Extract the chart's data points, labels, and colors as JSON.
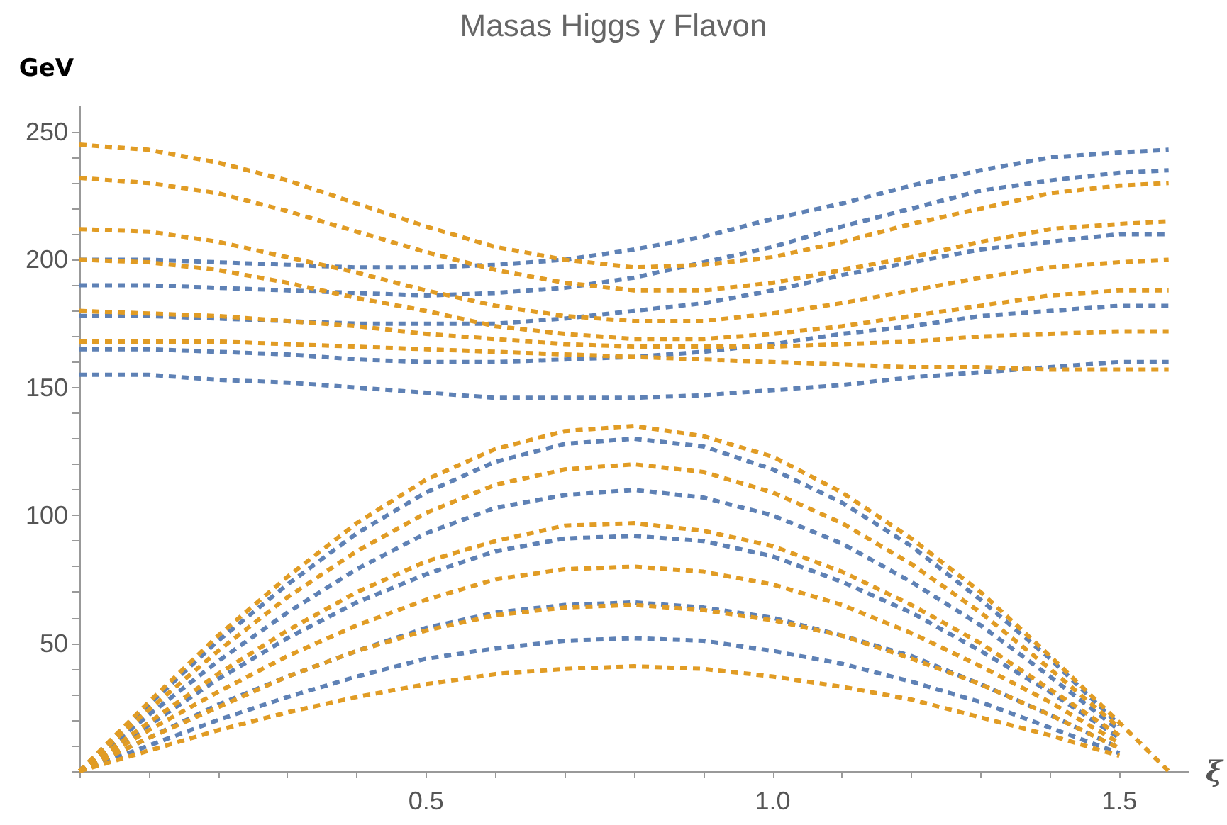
{
  "chart_data": {
    "type": "line",
    "title": "Masas Higgs y Flavon",
    "xlabel": "ξ",
    "ylabel": "GeV",
    "line_style": "dashed",
    "marker": "none",
    "grid": false,
    "x": [
      0,
      0.1,
      0.2,
      0.3,
      0.4,
      0.5,
      0.6,
      0.7,
      0.8,
      0.9,
      1.0,
      1.1,
      1.2,
      1.3,
      1.4,
      1.5,
      1.571
    ],
    "xlim": [
      0,
      1.6
    ],
    "ylim": [
      0,
      260
    ],
    "xticks": [
      {
        "value": 0,
        "label": null
      },
      {
        "value": 0.1,
        "label": null
      },
      {
        "value": 0.2,
        "label": null
      },
      {
        "value": 0.3,
        "label": null
      },
      {
        "value": 0.4,
        "label": null
      },
      0.5,
      {
        "value": 0.6,
        "label": null
      },
      {
        "value": 0.7,
        "label": null
      },
      {
        "value": 0.8,
        "label": null
      },
      {
        "value": 0.9,
        "label": null
      },
      {
        "value": 1.0,
        "label": "1.0"
      },
      {
        "value": 1.1,
        "label": null
      },
      {
        "value": 1.2,
        "label": null
      },
      {
        "value": 1.3,
        "label": null
      },
      {
        "value": 1.4,
        "label": null
      },
      1.5
    ],
    "yticks": [
      {
        "value": 0,
        "label": null
      },
      {
        "value": 10,
        "label": null
      },
      {
        "value": 20,
        "label": null
      },
      {
        "value": 30,
        "label": null
      },
      {
        "value": 40,
        "label": null
      },
      50,
      {
        "value": 60,
        "label": null
      },
      {
        "value": 70,
        "label": null
      },
      {
        "value": 80,
        "label": null
      },
      {
        "value": 90,
        "label": null
      },
      100,
      {
        "value": 110,
        "label": null
      },
      {
        "value": 120,
        "label": null
      },
      {
        "value": 130,
        "label": null
      },
      {
        "value": 140,
        "label": null
      },
      150,
      {
        "value": 160,
        "label": null
      },
      {
        "value": 170,
        "label": null
      },
      {
        "value": 180,
        "label": null
      },
      {
        "value": 190,
        "label": null
      },
      200,
      {
        "value": 210,
        "label": null
      },
      {
        "value": 220,
        "label": null
      },
      {
        "value": 230,
        "label": null
      },
      {
        "value": 240,
        "label": null
      },
      250
    ],
    "series": [
      {
        "color": "#5e81b5",
        "values": [
          0,
          26,
          51,
          73,
          93,
          109,
          121,
          128,
          130,
          127,
          118,
          105,
          88,
          67,
          44,
          18,
          null
        ]
      },
      {
        "color": "#5e81b5",
        "values": [
          0,
          22,
          43,
          62,
          79,
          93,
          103,
          108,
          110,
          107,
          100,
          89,
          74,
          57,
          37,
          16,
          null
        ]
      },
      {
        "color": "#5e81b5",
        "values": [
          0,
          18,
          36,
          52,
          66,
          77,
          86,
          91,
          92,
          90,
          84,
          74,
          62,
          47,
          31,
          13,
          null
        ]
      },
      {
        "color": "#5e81b5",
        "values": [
          0,
          13,
          26,
          37,
          47,
          56,
          62,
          65,
          66,
          64,
          60,
          53,
          45,
          34,
          22,
          9,
          null
        ]
      },
      {
        "color": "#5e81b5",
        "values": [
          0,
          10,
          20,
          29,
          37,
          44,
          48,
          51,
          52,
          51,
          47,
          42,
          35,
          27,
          17,
          7,
          null
        ]
      },
      {
        "color": "#5e81b5",
        "values": [
          200,
          200,
          199,
          198,
          197,
          197,
          198,
          200,
          204,
          209,
          216,
          222,
          229,
          235,
          240,
          242,
          243
        ]
      },
      {
        "color": "#5e81b5",
        "values": [
          190,
          190,
          189,
          188,
          187,
          186,
          187,
          189,
          193,
          199,
          205,
          213,
          220,
          227,
          231,
          234,
          235
        ]
      },
      {
        "color": "#5e81b5",
        "values": [
          178,
          178,
          177,
          176,
          175,
          175,
          175,
          177,
          180,
          183,
          188,
          194,
          199,
          204,
          207,
          210,
          210
        ]
      },
      {
        "color": "#5e81b5",
        "values": [
          165,
          165,
          164,
          163,
          161,
          160,
          160,
          161,
          162,
          164,
          167,
          171,
          174,
          178,
          180,
          182,
          182
        ]
      },
      {
        "color": "#5e81b5",
        "values": [
          155,
          155,
          153,
          152,
          150,
          148,
          146,
          146,
          146,
          147,
          149,
          151,
          154,
          156,
          158,
          160,
          160
        ]
      },
      {
        "color": "#e19c24",
        "values": [
          0,
          27,
          53,
          76,
          97,
          114,
          126,
          133,
          135,
          131,
          123,
          109,
          91,
          70,
          45,
          19,
          0
        ]
      },
      {
        "color": "#e19c24",
        "values": [
          0,
          24,
          47,
          68,
          86,
          101,
          112,
          118,
          120,
          117,
          109,
          97,
          81,
          62,
          40,
          17,
          null
        ]
      },
      {
        "color": "#e19c24",
        "values": [
          0,
          19,
          38,
          55,
          70,
          82,
          90,
          96,
          97,
          94,
          88,
          78,
          65,
          50,
          32,
          14,
          null
        ]
      },
      {
        "color": "#e19c24",
        "values": [
          0,
          16,
          31,
          45,
          57,
          67,
          75,
          79,
          80,
          78,
          73,
          65,
          54,
          41,
          27,
          11,
          null
        ]
      },
      {
        "color": "#e19c24",
        "values": [
          0,
          13,
          25,
          37,
          47,
          55,
          61,
          64,
          65,
          63,
          59,
          53,
          44,
          34,
          22,
          9,
          null
        ]
      },
      {
        "color": "#e19c24",
        "values": [
          0,
          8,
          16,
          23,
          29,
          34,
          38,
          40,
          41,
          40,
          37,
          33,
          28,
          21,
          14,
          6,
          null
        ]
      },
      {
        "color": "#e19c24",
        "values": [
          245,
          243,
          238,
          231,
          222,
          213,
          205,
          200,
          197,
          198,
          201,
          207,
          214,
          220,
          226,
          229,
          230
        ]
      },
      {
        "color": "#e19c24",
        "values": [
          232,
          230,
          226,
          219,
          211,
          203,
          196,
          191,
          188,
          188,
          191,
          196,
          201,
          207,
          212,
          214,
          215
        ]
      },
      {
        "color": "#e19c24",
        "values": [
          212,
          211,
          207,
          201,
          195,
          188,
          182,
          178,
          176,
          176,
          179,
          183,
          188,
          193,
          197,
          199,
          200
        ]
      },
      {
        "color": "#e19c24",
        "values": [
          200,
          199,
          196,
          191,
          185,
          180,
          174,
          171,
          169,
          169,
          171,
          174,
          178,
          182,
          186,
          188,
          188
        ]
      },
      {
        "color": "#e19c24",
        "values": [
          180,
          179,
          178,
          176,
          174,
          171,
          169,
          167,
          166,
          166,
          166,
          167,
          168,
          170,
          171,
          172,
          172
        ]
      },
      {
        "color": "#e19c24",
        "values": [
          168,
          168,
          168,
          167,
          166,
          165,
          164,
          163,
          162,
          161,
          160,
          159,
          158,
          158,
          157,
          157,
          157
        ]
      }
    ]
  }
}
